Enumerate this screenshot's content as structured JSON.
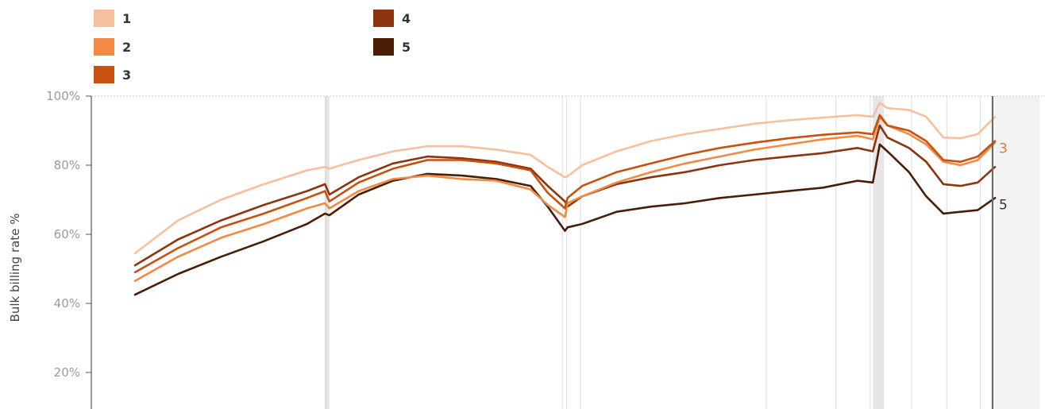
{
  "chart_data": {
    "type": "line",
    "title": "",
    "xlabel": "",
    "ylabel": "Bulk billing rate %",
    "ylim": [
      10,
      100
    ],
    "yticks": [
      "20%",
      "40%",
      "60%",
      "80%",
      "100%"
    ],
    "ytick_values": [
      20,
      40,
      60,
      80,
      100
    ],
    "grid": false,
    "legend_position": "top-left",
    "reference_lines": [
      0.221,
      0.222,
      0.497,
      0.502,
      0.518,
      0.734,
      0.815,
      0.855,
      0.903,
      0.944,
      0.983,
      0.997
    ],
    "shaded_bands": [
      {
        "start": 0.221,
        "end": 0.226,
        "color": "#e4e4e4"
      },
      {
        "start": 0.858,
        "end": 0.871,
        "color": "#e6e6e6"
      },
      {
        "start": 1.0,
        "end": 1.052,
        "color": "#f2f2f2"
      }
    ],
    "series": [
      {
        "name": "1",
        "color": "#f5c09f",
        "x": [
          0.0,
          0.05,
          0.1,
          0.15,
          0.2,
          0.221,
          0.226,
          0.26,
          0.3,
          0.34,
          0.38,
          0.42,
          0.46,
          0.48,
          0.5,
          0.503,
          0.52,
          0.56,
          0.6,
          0.64,
          0.68,
          0.72,
          0.76,
          0.8,
          0.84,
          0.858,
          0.866,
          0.875,
          0.9,
          0.92,
          0.94,
          0.96,
          0.98,
          1.0
        ],
        "values": [
          54.5,
          64,
          70,
          74.5,
          78.5,
          79.5,
          79,
          81.5,
          84,
          85.5,
          85.5,
          84.5,
          83,
          79.5,
          76.5,
          76.8,
          80,
          84,
          87,
          89,
          90.5,
          92,
          93,
          93.8,
          94.5,
          94,
          98,
          96.5,
          96,
          94,
          88,
          87.8,
          89,
          94
        ]
      },
      {
        "name": "2",
        "color": "#f28a45",
        "x": [
          0.0,
          0.05,
          0.1,
          0.15,
          0.2,
          0.221,
          0.226,
          0.26,
          0.3,
          0.34,
          0.38,
          0.42,
          0.46,
          0.48,
          0.5,
          0.503,
          0.52,
          0.56,
          0.6,
          0.64,
          0.68,
          0.72,
          0.76,
          0.8,
          0.84,
          0.858,
          0.866,
          0.875,
          0.9,
          0.92,
          0.94,
          0.96,
          0.98,
          1.0
        ],
        "values": [
          46.5,
          53.5,
          59,
          63,
          67.5,
          69,
          67.5,
          72.5,
          76,
          77,
          76,
          75.5,
          73,
          68.5,
          65,
          69,
          71,
          75,
          78,
          80.5,
          82.5,
          84.5,
          86,
          87.5,
          88.5,
          87.5,
          94,
          91.5,
          89,
          86,
          81,
          80,
          81.5,
          86.5
        ]
      },
      {
        "name": "3",
        "color": "#c8510e",
        "x": [
          0.0,
          0.05,
          0.1,
          0.15,
          0.2,
          0.221,
          0.226,
          0.26,
          0.3,
          0.34,
          0.38,
          0.42,
          0.46,
          0.48,
          0.5,
          0.503,
          0.52,
          0.56,
          0.6,
          0.64,
          0.68,
          0.72,
          0.76,
          0.8,
          0.84,
          0.858,
          0.866,
          0.875,
          0.9,
          0.92,
          0.94,
          0.96,
          0.98,
          1.0
        ],
        "values": [
          49,
          56,
          62,
          66,
          70.5,
          72.5,
          69.5,
          75,
          79,
          81.5,
          81.5,
          80.5,
          78.5,
          72,
          67.5,
          70.5,
          74,
          78,
          80.5,
          83,
          85,
          86.5,
          87.8,
          88.8,
          89.5,
          89,
          94.5,
          91.5,
          90,
          87,
          81.5,
          81,
          82.5,
          87
        ]
      },
      {
        "name": "4",
        "color": "#8e3410",
        "x": [
          0.0,
          0.05,
          0.1,
          0.15,
          0.2,
          0.221,
          0.226,
          0.26,
          0.3,
          0.34,
          0.38,
          0.42,
          0.46,
          0.48,
          0.5,
          0.503,
          0.52,
          0.56,
          0.6,
          0.64,
          0.68,
          0.72,
          0.76,
          0.8,
          0.84,
          0.858,
          0.866,
          0.875,
          0.9,
          0.92,
          0.94,
          0.96,
          0.98,
          1.0
        ],
        "values": [
          51,
          58.5,
          64,
          68.5,
          72.5,
          74.5,
          71.5,
          76.5,
          80.5,
          82.5,
          82,
          81,
          79,
          74,
          69.5,
          68,
          71,
          74.5,
          76.5,
          78,
          80,
          81.5,
          82.5,
          83.5,
          85,
          84,
          91.5,
          88,
          85,
          81,
          74.5,
          74,
          75,
          79.5
        ]
      },
      {
        "name": "5",
        "color": "#4a1d07",
        "x": [
          0.0,
          0.05,
          0.1,
          0.15,
          0.2,
          0.221,
          0.226,
          0.26,
          0.3,
          0.34,
          0.38,
          0.42,
          0.46,
          0.48,
          0.5,
          0.503,
          0.52,
          0.56,
          0.6,
          0.64,
          0.68,
          0.72,
          0.76,
          0.8,
          0.84,
          0.858,
          0.866,
          0.875,
          0.9,
          0.92,
          0.94,
          0.96,
          0.98,
          1.0
        ],
        "values": [
          42.5,
          48.5,
          53.5,
          58,
          63,
          66,
          65.5,
          71.5,
          75.5,
          77.5,
          77,
          76,
          74,
          68,
          61,
          62,
          63,
          66.5,
          68,
          69,
          70.5,
          71.5,
          72.5,
          73.5,
          75.5,
          75,
          86,
          84,
          78,
          71,
          66,
          66.5,
          67,
          70.5
        ]
      }
    ],
    "end_labels": [
      {
        "text": "3",
        "series": "3",
        "color": "#dc7a3c"
      },
      {
        "text": "5",
        "series": "5",
        "color": "#333333"
      }
    ]
  },
  "legend": {
    "items": [
      {
        "label": "1",
        "color": "#f5c09f"
      },
      {
        "label": "2",
        "color": "#f28a45"
      },
      {
        "label": "3",
        "color": "#c8510e"
      },
      {
        "label": "4",
        "color": "#8e3410"
      },
      {
        "label": "5",
        "color": "#4a1d07"
      }
    ]
  }
}
